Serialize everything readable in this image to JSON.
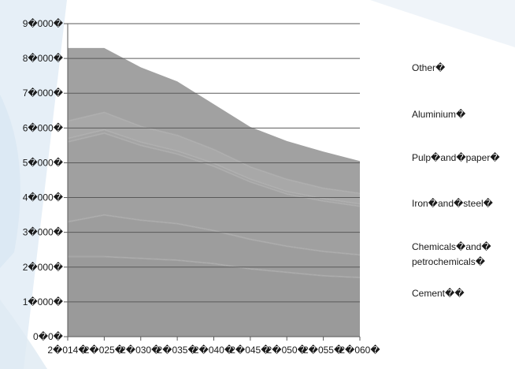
{
  "chart_data": {
    "type": "area",
    "title": "",
    "xlabel": "",
    "ylabel": "",
    "x": [
      "2014",
      "2025",
      "2030",
      "2035",
      "2040",
      "2045",
      "2050",
      "2055",
      "2060"
    ],
    "x_tick_labels": [
      "2�014�",
      "2�025�",
      "2�030�",
      "2�035�",
      "2�040�",
      "2�045�",
      "2�050�",
      "2�055�",
      "2�060�"
    ],
    "ylim": [
      0,
      9000
    ],
    "y_ticks": [
      0,
      1000,
      2000,
      3000,
      4000,
      5000,
      6000,
      7000,
      8000,
      9000
    ],
    "y_tick_labels": [
      "0�0�",
      "1�000�",
      "2�000�",
      "3�000�",
      "4�000�",
      "5�000�",
      "6�000�",
      "7�000�",
      "8�000�",
      "9�000�"
    ],
    "stacked": true,
    "grid": true,
    "legend": "right",
    "series": [
      {
        "name": "Cement�",
        "label": "Cement��",
        "color": "#9a9a9a",
        "values": [
          2300,
          2300,
          2250,
          2200,
          2100,
          1950,
          1850,
          1750,
          1700
        ]
      },
      {
        "name": "Chemicals and petrochemicals",
        "label": [
          "Chemicals�and�",
          "petrochemicals�"
        ],
        "color": "#9d9d9d",
        "values": [
          1000,
          1200,
          1100,
          1050,
          950,
          850,
          750,
          700,
          650
        ]
      },
      {
        "name": "Iron and steel",
        "label": "Iron�and�steel�",
        "color": "#a0a0a0",
        "values": [
          2300,
          2350,
          2150,
          2000,
          1850,
          1650,
          1500,
          1450,
          1400
        ]
      },
      {
        "name": "Pulp and paper",
        "label": "Pulp�and�paper�",
        "color": "#a4a4a4",
        "values": [
          100,
          100,
          95,
          90,
          85,
          80,
          75,
          70,
          70
        ]
      },
      {
        "name": "Aluminium",
        "label": "Aluminium�",
        "color": "#a8a8a8",
        "values": [
          500,
          500,
          450,
          450,
          400,
          350,
          350,
          300,
          300
        ]
      },
      {
        "name": "Other",
        "label": "Other�",
        "color": "#a1a1a1",
        "values": [
          2100,
          1850,
          1700,
          1550,
          1300,
          1150,
          1100,
          1050,
          930
        ]
      }
    ]
  }
}
